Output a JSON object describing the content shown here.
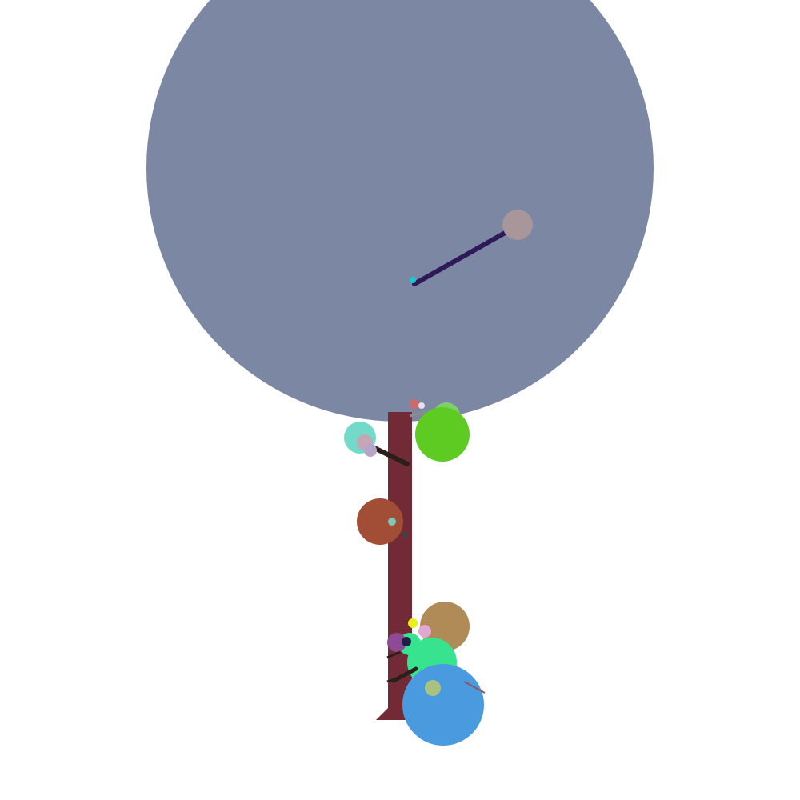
{
  "scene": {
    "description_free": true,
    "colors": {
      "background": "#ffffff",
      "canopy": "#7c87a4",
      "trunk": "#722b36",
      "branch_dark": "#2b1f1c",
      "branch_purple": "#2e1a57",
      "lime": "#5dcb21",
      "teal": "#73d9c8",
      "rust": "#a24d36",
      "tan": "#b08a57",
      "mint": "#38e38f",
      "blue": "#4a9ae0",
      "plum": "#8e4a94",
      "mauve": "#a8969a",
      "lilac": "#b9a4c9",
      "yellow": "#e8f01c",
      "sage": "#a9c27f",
      "cyan": "#19c9cf",
      "salmon": "#d06a6a",
      "pink": "#e3a8d0"
    }
  }
}
